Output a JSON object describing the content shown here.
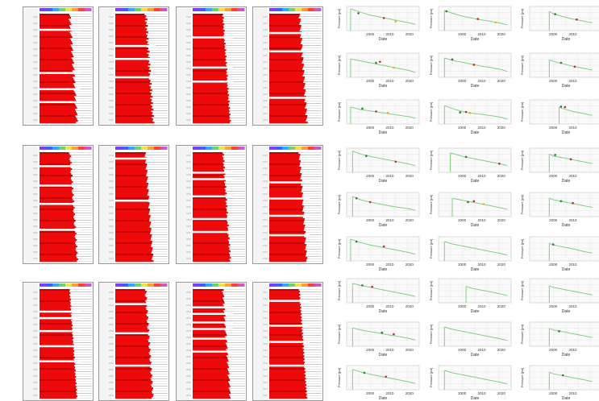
{
  "colors": {
    "log_fill": "#ee0a0a",
    "log_fill_dark": "#c40000",
    "log_gap": "#ffffff",
    "log_grey": "#c8c8c8",
    "header_rainbow": [
      "#7d3cff",
      "#3c5dff",
      "#29a9ff",
      "#6cd36c",
      "#f2e04b",
      "#ff9b3a",
      "#ff4040",
      "#c85ac8"
    ],
    "pressure_line": "#7fd07f",
    "grid": "#e6e6e6",
    "point_colors": [
      "#2e7d32",
      "#c62828",
      "#f9a825",
      "#111111"
    ]
  },
  "log_panels": [
    {
      "id": "r1c1",
      "pattern": [
        0.4,
        0.55,
        0.7,
        0.25
      ],
      "gaps": [
        0.14,
        0.54,
        0.69,
        0.81
      ]
    },
    {
      "id": "r1c2",
      "pattern": [
        0.3,
        0.6,
        0.45,
        0.8
      ],
      "gaps": [
        0.29,
        0.41,
        0.58
      ]
    },
    {
      "id": "r1c3",
      "pattern": [
        0.5,
        0.35,
        0.65,
        0.4
      ],
      "gaps": [
        0.21,
        0.49,
        0.62
      ]
    },
    {
      "id": "r1c4",
      "pattern": [
        0.6,
        0.45,
        0.3,
        0.7
      ],
      "gaps": [
        0.17,
        0.34,
        0.77
      ]
    },
    {
      "id": "r2c1",
      "pattern": [
        0.35,
        0.5,
        0.75,
        0.45
      ],
      "gaps": [
        0.12,
        0.3,
        0.47,
        0.71
      ]
    },
    {
      "id": "r2c2",
      "pattern": [
        0.55,
        0.4,
        0.3,
        0.65
      ],
      "gaps": [
        0.05,
        0.44
      ]
    },
    {
      "id": "r2c3",
      "pattern": [
        0.45,
        0.7,
        0.35,
        0.5
      ],
      "gaps": [
        0.18,
        0.24,
        0.4,
        0.61,
        0.73
      ]
    },
    {
      "id": "r2c4",
      "pattern": [
        0.3,
        0.65,
        0.5,
        0.4
      ],
      "gaps": [
        0.27,
        0.42,
        0.58,
        0.76
      ]
    },
    {
      "id": "r3c1",
      "pattern": [
        0.5,
        0.4,
        0.6,
        0.35
      ],
      "gaps": [
        0.2,
        0.26,
        0.38,
        0.52,
        0.66
      ]
    },
    {
      "id": "r3c2",
      "pattern": [
        0.4,
        0.7,
        0.55,
        0.3
      ],
      "gaps": [
        0.13,
        0.4,
        0.7
      ]
    },
    {
      "id": "r3c3",
      "pattern": [
        0.65,
        0.3,
        0.45,
        0.55
      ],
      "gaps": [
        0.16,
        0.22,
        0.3,
        0.36,
        0.45,
        0.57
      ]
    },
    {
      "id": "r3c4",
      "pattern": [
        0.35,
        0.55,
        0.4,
        0.6
      ],
      "gaps": [
        0.1,
        0.33,
        0.48,
        0.7
      ]
    }
  ],
  "chart_data": [
    {
      "type": "line",
      "xlabel": "Date",
      "ylabel": "Pressure [psi]",
      "xticks": [
        "2000",
        "2010",
        "2020"
      ],
      "x": [
        1990,
        1995,
        2000,
        2005,
        2010,
        2015,
        2020,
        2023
      ],
      "y": [
        0.95,
        0.88,
        0.82,
        0.78,
        0.74,
        0.7,
        0.66,
        0.63
      ],
      "points": [
        [
          1994,
          0.86
        ],
        [
          2007,
          0.76
        ],
        [
          2013,
          0.69
        ]
      ]
    },
    {
      "type": "line",
      "xlabel": "Date",
      "ylabel": "Pressure [psi]",
      "xticks": [
        "2000",
        "2010",
        "2020"
      ],
      "x": [
        1991,
        1995,
        2000,
        2005,
        2010,
        2015,
        2020,
        2023
      ],
      "y": [
        0.92,
        0.86,
        0.8,
        0.76,
        0.72,
        0.69,
        0.65,
        0.62
      ],
      "points": [
        [
          1992,
          0.9
        ],
        [
          2008,
          0.74
        ],
        [
          2017,
          0.67
        ]
      ]
    },
    {
      "type": "line",
      "xlabel": "Date",
      "ylabel": "Pressure [psi]",
      "xticks": [
        "2000",
        "2010"
      ],
      "x": [
        1998,
        2000,
        2005,
        2010,
        2015,
        2020
      ],
      "y": [
        0.9,
        0.85,
        0.79,
        0.74,
        0.7,
        0.66
      ],
      "points": [
        [
          2001,
          0.84
        ],
        [
          2012,
          0.73
        ]
      ]
    },
    {
      "type": "line",
      "xlabel": "Date",
      "ylabel": "Pressure [psi]",
      "xticks": [
        "2000",
        "2010",
        "2020"
      ],
      "x": [
        1990,
        1995,
        2000,
        2005,
        2010,
        2015,
        2020,
        2023
      ],
      "y": [
        0.88,
        0.84,
        0.8,
        0.76,
        0.72,
        0.68,
        0.64,
        0.6
      ],
      "points": [
        [
          2003,
          0.8
        ],
        [
          2005,
          0.82
        ],
        [
          2012,
          0.7
        ]
      ]
    },
    {
      "type": "line",
      "xlabel": "Date",
      "ylabel": "Pressure [psi]",
      "xticks": [
        "2000",
        "2010",
        "2020"
      ],
      "x": [
        1991,
        1995,
        2000,
        2005,
        2010,
        2015,
        2020,
        2023
      ],
      "y": [
        0.9,
        0.85,
        0.81,
        0.77,
        0.73,
        0.7,
        0.66,
        0.62
      ],
      "points": [
        [
          1995,
          0.87
        ],
        [
          2006,
          0.76
        ]
      ]
    },
    {
      "type": "line",
      "xlabel": "Date",
      "ylabel": "Pressure [psi]",
      "xticks": [
        "2000",
        "2010"
      ],
      "x": [
        1998,
        2000,
        2005,
        2010,
        2015,
        2020
      ],
      "y": [
        0.86,
        0.83,
        0.78,
        0.73,
        0.69,
        0.65
      ],
      "points": [
        [
          2004,
          0.8
        ],
        [
          2011,
          0.72
        ]
      ]
    },
    {
      "type": "line",
      "xlabel": "Date",
      "ylabel": "Pressure [psi]",
      "xticks": [
        "2000",
        "2010",
        "2020"
      ],
      "x": [
        1990,
        1995,
        2000,
        2005,
        2010,
        2015,
        2020,
        2023
      ],
      "y": [
        0.85,
        0.8,
        0.77,
        0.74,
        0.71,
        0.68,
        0.65,
        0.62
      ],
      "points": [
        [
          1996,
          0.82
        ],
        [
          2003,
          0.76
        ],
        [
          2009,
          0.73
        ]
      ]
    },
    {
      "type": "line",
      "xlabel": "Date",
      "ylabel": "Pressure [psi]",
      "xticks": [
        "2000",
        "2010",
        "2020"
      ],
      "x": [
        1991,
        1995,
        2000,
        2005,
        2010,
        2015,
        2020,
        2023
      ],
      "y": [
        0.88,
        0.82,
        0.76,
        0.72,
        0.7,
        0.67,
        0.64,
        0.6
      ],
      "points": [
        [
          1999,
          0.74
        ],
        [
          2002,
          0.75
        ],
        [
          2004,
          0.73
        ]
      ]
    },
    {
      "type": "line",
      "xlabel": "Date",
      "ylabel": "Pressure [psi]",
      "xticks": [
        "2000",
        "2010"
      ],
      "x": [
        2003,
        2005,
        2010,
        2015,
        2020
      ],
      "y": [
        0.85,
        0.82,
        0.76,
        0.72,
        0.68
      ],
      "points": [
        [
          2004,
          0.86
        ],
        [
          2006,
          0.85
        ]
      ]
    },
    {
      "type": "line",
      "xlabel": "Date",
      "ylabel": "Pressure [psi]",
      "xticks": [
        "2000",
        "2010",
        "2020"
      ],
      "x": [
        1991,
        1995,
        2000,
        2005,
        2010,
        2015,
        2020,
        2023
      ],
      "y": [
        0.94,
        0.88,
        0.83,
        0.79,
        0.75,
        0.71,
        0.67,
        0.64
      ],
      "points": [
        [
          1998,
          0.84
        ],
        [
          2013,
          0.72
        ]
      ]
    },
    {
      "type": "line",
      "xlabel": "Date",
      "ylabel": "Pressure [psi]",
      "xticks": [
        "2000",
        "2010",
        "2020"
      ],
      "x": [
        1994,
        1998,
        2000,
        2005,
        2010,
        2015,
        2020,
        2023
      ],
      "y": [
        0.9,
        0.86,
        0.83,
        0.79,
        0.75,
        0.71,
        0.67,
        0.64
      ],
      "points": [
        [
          2002,
          0.82
        ],
        [
          2019,
          0.68
        ]
      ]
    },
    {
      "type": "line",
      "xlabel": "Date",
      "ylabel": "Pressure [psi]",
      "xticks": [
        "2000",
        "2010"
      ],
      "x": [
        1998,
        2000,
        2005,
        2010,
        2015,
        2020
      ],
      "y": [
        0.88,
        0.84,
        0.8,
        0.76,
        0.72,
        0.68
      ],
      "points": [
        [
          2001,
          0.86
        ],
        [
          2009,
          0.77
        ]
      ]
    },
    {
      "type": "line",
      "xlabel": "Date",
      "ylabel": "Pressure [psi]",
      "xticks": [
        "2000",
        "2010",
        "2020"
      ],
      "x": [
        1991,
        1995,
        2000,
        2005,
        2010,
        2015,
        2020,
        2023
      ],
      "y": [
        0.92,
        0.85,
        0.8,
        0.76,
        0.72,
        0.69,
        0.66,
        0.63
      ],
      "points": [
        [
          1993,
          0.88
        ],
        [
          2000,
          0.8
        ]
      ]
    },
    {
      "type": "line",
      "xlabel": "Date",
      "ylabel": "Pressure [psi]",
      "xticks": [
        "2000",
        "2010",
        "2020"
      ],
      "x": [
        1995,
        2000,
        2005,
        2010,
        2015,
        2020,
        2023
      ],
      "y": [
        0.88,
        0.84,
        0.8,
        0.76,
        0.72,
        0.68,
        0.65
      ],
      "points": [
        [
          2003,
          0.8
        ],
        [
          2006,
          0.82
        ],
        [
          2011,
          0.76
        ]
      ]
    },
    {
      "type": "line",
      "xlabel": "Date",
      "ylabel": "Pressure [psi]",
      "xticks": [
        "2000",
        "2010"
      ],
      "x": [
        1998,
        2000,
        2005,
        2010,
        2015,
        2020
      ],
      "y": [
        0.88,
        0.85,
        0.81,
        0.77,
        0.73,
        0.69
      ],
      "points": [
        [
          2004,
          0.82
        ],
        [
          2010,
          0.78
        ]
      ]
    },
    {
      "type": "line",
      "xlabel": "Date",
      "ylabel": "Pressure [psi]",
      "xticks": [
        "2000",
        "2010",
        "2020"
      ],
      "x": [
        1990,
        1995,
        2000,
        2005,
        2010,
        2015,
        2020,
        2023
      ],
      "y": [
        0.95,
        0.88,
        0.83,
        0.79,
        0.75,
        0.71,
        0.67,
        0.64
      ],
      "points": [
        [
          1993,
          0.9
        ],
        [
          2007,
          0.8
        ]
      ]
    },
    {
      "type": "line",
      "xlabel": "Date",
      "ylabel": "Pressure [psi]",
      "xticks": [
        "2000",
        "2010",
        "2020"
      ],
      "x": [
        1991,
        1995,
        2000,
        2005,
        2010,
        2015,
        2020,
        2023
      ],
      "y": [
        0.9,
        0.85,
        0.81,
        0.77,
        0.73,
        0.69,
        0.65,
        0.62
      ],
      "points": []
    },
    {
      "type": "line",
      "xlabel": "Date",
      "ylabel": "Pressure [psi]",
      "xticks": [
        "2000",
        "2010"
      ],
      "x": [
        1998,
        2000,
        2005,
        2010,
        2015,
        2020
      ],
      "y": [
        0.86,
        0.83,
        0.79,
        0.75,
        0.7,
        0.66
      ],
      "points": [
        [
          2000,
          0.84
        ]
      ]
    },
    {
      "type": "line",
      "xlabel": "Date",
      "ylabel": "Pressure [psi]",
      "xticks": [
        "2000",
        "2010",
        "2020"
      ],
      "x": [
        1991,
        1995,
        2000,
        2005,
        2010,
        2015,
        2020,
        2023
      ],
      "y": [
        0.9,
        0.86,
        0.82,
        0.78,
        0.74,
        0.7,
        0.66,
        0.63
      ],
      "points": [
        [
          1996,
          0.86
        ],
        [
          2001,
          0.83
        ]
      ]
    },
    {
      "type": "line",
      "xlabel": "Date",
      "ylabel": "Pressure [psi]",
      "xticks": [
        "2000",
        "2010",
        "2020"
      ],
      "x": [
        2002,
        2005,
        2010,
        2015,
        2020,
        2023
      ],
      "y": [
        0.84,
        0.8,
        0.76,
        0.72,
        0.68,
        0.65
      ],
      "points": []
    },
    {
      "type": "line",
      "xlabel": "Date",
      "ylabel": "Pressure [psi]",
      "xticks": [
        "2000",
        "2010"
      ],
      "x": [
        1998,
        2000,
        2005,
        2010,
        2015,
        2020
      ],
      "y": [
        0.85,
        0.82,
        0.78,
        0.74,
        0.7,
        0.66
      ],
      "points": []
    },
    {
      "type": "line",
      "xlabel": "Date",
      "ylabel": "Pressure [psi]",
      "xticks": [
        "2000",
        "2010",
        "2020"
      ],
      "x": [
        1991,
        1995,
        2000,
        2005,
        2010,
        2015,
        2020,
        2023
      ],
      "y": [
        0.88,
        0.84,
        0.8,
        0.77,
        0.73,
        0.7,
        0.66,
        0.63
      ],
      "points": [
        [
          2006,
          0.78
        ],
        [
          2012,
          0.75
        ]
      ]
    },
    {
      "type": "line",
      "xlabel": "Date",
      "ylabel": "Pressure [psi]",
      "xticks": [
        "2000",
        "2010",
        "2020"
      ],
      "x": [
        1991,
        1995,
        2000,
        2005,
        2010,
        2015,
        2020,
        2023
      ],
      "y": [
        0.9,
        0.85,
        0.81,
        0.77,
        0.73,
        0.69,
        0.65,
        0.62
      ],
      "points": []
    },
    {
      "type": "line",
      "xlabel": "Date",
      "ylabel": "Pressure [psi]",
      "xticks": [
        "2000",
        "2010"
      ],
      "x": [
        1998,
        2000,
        2005,
        2010,
        2015,
        2020
      ],
      "y": [
        0.87,
        0.84,
        0.8,
        0.76,
        0.72,
        0.68
      ],
      "points": [
        [
          2003,
          0.81
        ]
      ]
    },
    {
      "type": "line",
      "xlabel": "Date",
      "ylabel": "Pressure [psi]",
      "xticks": [
        "2000",
        "2010",
        "2020"
      ],
      "x": [
        1991,
        1995,
        2000,
        2005,
        2010,
        2015,
        2020,
        2023
      ],
      "y": [
        0.92,
        0.87,
        0.82,
        0.78,
        0.74,
        0.7,
        0.66,
        0.63
      ],
      "points": [
        [
          1997,
          0.85
        ],
        [
          2008,
          0.77
        ]
      ]
    },
    {
      "type": "line",
      "xlabel": "Date",
      "ylabel": "Pressure [psi]",
      "xticks": [
        "2000",
        "2010",
        "2020"
      ],
      "x": [
        1991,
        1995,
        2000,
        2005,
        2010,
        2015,
        2020,
        2023
      ],
      "y": [
        0.9,
        0.85,
        0.81,
        0.77,
        0.73,
        0.69,
        0.65,
        0.62
      ],
      "points": []
    },
    {
      "type": "line",
      "xlabel": "Date",
      "ylabel": "Pressure [psi]",
      "xticks": [
        "2000",
        "2010"
      ],
      "x": [
        1998,
        2000,
        2005,
        2010,
        2015,
        2020
      ],
      "y": [
        0.86,
        0.83,
        0.79,
        0.75,
        0.71,
        0.67
      ],
      "points": [
        [
          2005,
          0.8
        ]
      ]
    }
  ]
}
